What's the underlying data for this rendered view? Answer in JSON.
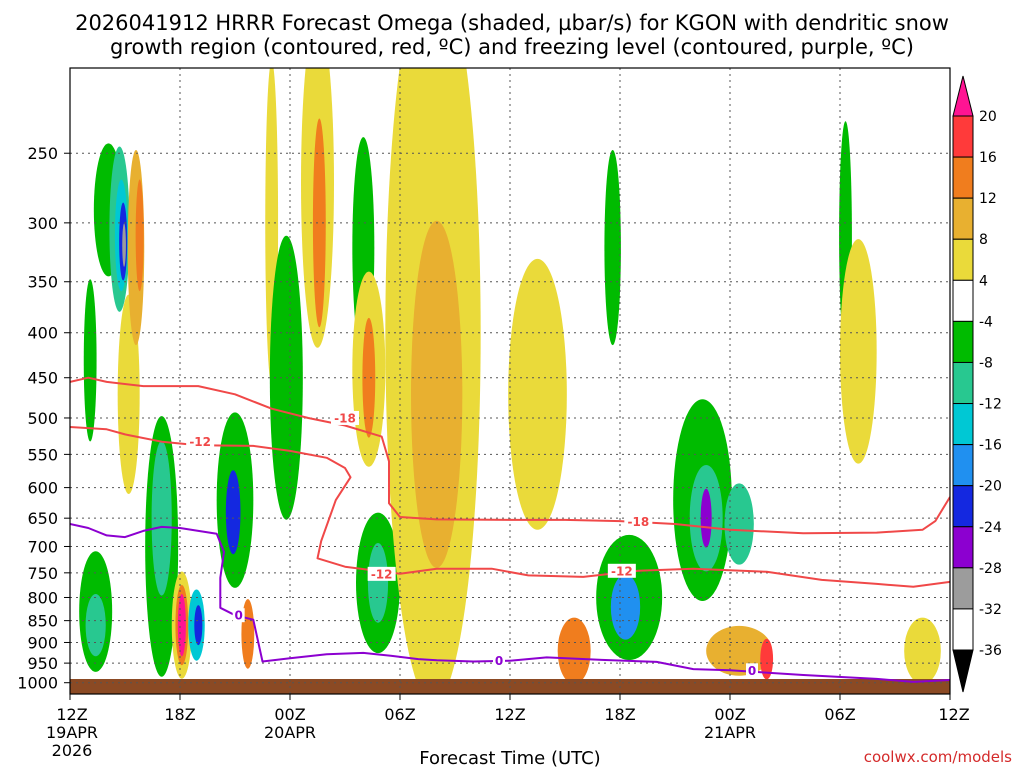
{
  "chart_data": {
    "type": "contour",
    "title_line1": "2026041912 HRRR Forecast Omega (shaded, µbar/s) for KGON with dendritic snow",
    "title_line2": "growth region (contoured, red, ºC) and freezing level (contoured, purple, ºC)",
    "xlabel": "Forecast Time (UTC)",
    "ylabel": "",
    "credit": "coolwx.com/models",
    "y_axis": {
      "scale": "log",
      "range": [
        200,
        1030
      ],
      "ticks": [
        250,
        300,
        350,
        400,
        450,
        500,
        550,
        600,
        650,
        700,
        750,
        800,
        850,
        900,
        950,
        1000
      ]
    },
    "x_axis": {
      "range_hours": [
        0,
        48
      ],
      "ticks": [
        {
          "hour": 0,
          "label": "12Z",
          "date": "19APR",
          "year": "2026"
        },
        {
          "hour": 6,
          "label": "18Z"
        },
        {
          "hour": 12,
          "label": "00Z",
          "date": "20APR"
        },
        {
          "hour": 18,
          "label": "06Z"
        },
        {
          "hour": 24,
          "label": "12Z"
        },
        {
          "hour": 30,
          "label": "18Z"
        },
        {
          "hour": 36,
          "label": "00Z",
          "date": "21APR"
        },
        {
          "hour": 42,
          "label": "06Z"
        },
        {
          "hour": 48,
          "label": "12Z"
        }
      ]
    },
    "colorbar": {
      "labels": [
        "20",
        "16",
        "12",
        "8",
        "4",
        "-4",
        "-8",
        "-12",
        "-16",
        "-20",
        "-24",
        "-28",
        "-32",
        "-36"
      ],
      "colors": [
        "#ff1493",
        "#ff3a3a",
        "#f07d1e",
        "#e8b030",
        "#eada3a",
        "#ffffff",
        "#00bb00",
        "#28c890",
        "#00c8d4",
        "#2090f0",
        "#1428e0",
        "#8c00d0",
        "#9c9c9c"
      ]
    },
    "series": [
      {
        "name": "-18",
        "color": "#f04848",
        "points": [
          [
            0,
            455
          ],
          [
            1,
            450
          ],
          [
            2,
            455
          ],
          [
            4,
            460
          ],
          [
            7,
            460
          ],
          [
            9,
            470
          ],
          [
            11,
            488
          ],
          [
            13,
            500
          ],
          [
            15,
            510
          ],
          [
            17,
            525
          ],
          [
            17.4,
            560
          ],
          [
            17.4,
            625
          ],
          [
            18,
            648
          ],
          [
            20,
            652
          ],
          [
            24,
            653
          ],
          [
            27,
            653
          ],
          [
            30,
            655
          ],
          [
            33,
            660
          ],
          [
            36,
            670
          ],
          [
            40,
            676
          ],
          [
            44,
            675
          ],
          [
            46.5,
            670
          ],
          [
            47.2,
            655
          ],
          [
            48,
            615
          ]
        ],
        "labels": [
          {
            "x": 15.0,
            "y": 500,
            "text": "-18"
          },
          {
            "x": 31.0,
            "y": 656,
            "text": "-18"
          }
        ]
      },
      {
        "name": "-12",
        "color": "#f04848",
        "points": [
          [
            0,
            512
          ],
          [
            2,
            515
          ],
          [
            3,
            522
          ],
          [
            5,
            532
          ],
          [
            7,
            537
          ],
          [
            10,
            538
          ],
          [
            12,
            545
          ],
          [
            14,
            555
          ],
          [
            15,
            570
          ],
          [
            15.3,
            584
          ],
          [
            14.5,
            620
          ],
          [
            13.7,
            690
          ],
          [
            13.5,
            722
          ],
          [
            15,
            738
          ],
          [
            18,
            752
          ],
          [
            20,
            742
          ],
          [
            23,
            742
          ],
          [
            25,
            755
          ],
          [
            28,
            758
          ],
          [
            31,
            746
          ],
          [
            34,
            742
          ],
          [
            38,
            748
          ],
          [
            41,
            764
          ],
          [
            44,
            772
          ],
          [
            46,
            778
          ],
          [
            48,
            768
          ]
        ],
        "labels": [
          {
            "x": 7.1,
            "y": 532,
            "text": "-12"
          },
          {
            "x": 17.0,
            "y": 752,
            "text": "-12"
          },
          {
            "x": 30.1,
            "y": 746,
            "text": "-12"
          }
        ]
      },
      {
        "name": "0",
        "color": "#8c00d0",
        "points": [
          [
            0,
            660
          ],
          [
            1,
            667
          ],
          [
            2,
            680
          ],
          [
            3,
            683
          ],
          [
            4,
            672
          ],
          [
            5,
            665
          ],
          [
            6,
            667
          ],
          [
            8,
            677
          ],
          [
            8.4,
            710
          ],
          [
            8.2,
            760
          ],
          [
            8.2,
            822
          ],
          [
            9,
            838
          ],
          [
            10,
            848
          ],
          [
            10.2,
            886
          ],
          [
            10.5,
            946
          ],
          [
            12,
            938
          ],
          [
            14,
            928
          ],
          [
            16,
            925
          ],
          [
            17.5,
            932
          ],
          [
            19,
            940
          ],
          [
            20,
            943
          ],
          [
            22,
            946
          ],
          [
            24,
            944
          ],
          [
            26,
            936
          ],
          [
            29,
            942
          ],
          [
            32,
            947
          ],
          [
            34,
            965
          ],
          [
            36,
            968
          ],
          [
            40,
            980
          ],
          [
            44,
            990
          ],
          [
            46,
            998
          ],
          [
            48,
            993
          ]
        ],
        "labels": [
          {
            "x": 9.2,
            "y": 838,
            "text": "0"
          },
          {
            "x": 23.4,
            "y": 944,
            "text": "0"
          },
          {
            "x": 37.2,
            "y": 968,
            "text": "0"
          }
        ]
      }
    ],
    "shading": [
      {
        "t": 1.1,
        "p": 430,
        "rx": 0.35,
        "ry": 90,
        "c": "#00bb00"
      },
      {
        "t": 1.4,
        "p": 830,
        "rx": 0.9,
        "ry": 130,
        "c": "#00bb00"
      },
      {
        "t": 1.4,
        "p": 860,
        "rx": 0.55,
        "ry": 70,
        "c": "#28c890"
      },
      {
        "t": 2.1,
        "p": 290,
        "rx": 0.8,
        "ry": 50,
        "c": "#00bb00"
      },
      {
        "t": 2.7,
        "p": 305,
        "rx": 0.55,
        "ry": 65,
        "c": "#28c890"
      },
      {
        "t": 2.8,
        "p": 310,
        "rx": 0.35,
        "ry": 45,
        "c": "#00c8d4"
      },
      {
        "t": 2.9,
        "p": 315,
        "rx": 0.22,
        "ry": 32,
        "c": "#1428e0"
      },
      {
        "t": 2.95,
        "p": 318,
        "rx": 0.1,
        "ry": 18,
        "c": "#9c9c9c"
      },
      {
        "t": 3.2,
        "p": 470,
        "rx": 0.6,
        "ry": 120,
        "c": "#eada3a"
      },
      {
        "t": 3.6,
        "p": 320,
        "rx": 0.45,
        "ry": 80,
        "c": "#e8b030"
      },
      {
        "t": 3.8,
        "p": 310,
        "rx": 0.22,
        "ry": 45,
        "c": "#f07d1e"
      },
      {
        "t": 5.0,
        "p": 700,
        "rx": 0.9,
        "ry": 230,
        "c": "#00bb00"
      },
      {
        "t": 5.0,
        "p": 650,
        "rx": 0.55,
        "ry": 130,
        "c": "#28c890"
      },
      {
        "t": 6.1,
        "p": 860,
        "rx": 0.55,
        "ry": 120,
        "c": "#eada3a"
      },
      {
        "t": 6.1,
        "p": 860,
        "rx": 0.35,
        "ry": 90,
        "c": "#f07d1e"
      },
      {
        "t": 6.1,
        "p": 860,
        "rx": 0.22,
        "ry": 70,
        "c": "#ff1493"
      },
      {
        "t": 6.9,
        "p": 860,
        "rx": 0.45,
        "ry": 80,
        "c": "#00c8d4"
      },
      {
        "t": 7.0,
        "p": 860,
        "rx": 0.22,
        "ry": 45,
        "c": "#1428e0"
      },
      {
        "t": 9.0,
        "p": 620,
        "rx": 1.0,
        "ry": 140,
        "c": "#00bb00"
      },
      {
        "t": 8.9,
        "p": 640,
        "rx": 0.4,
        "ry": 70,
        "c": "#1428e0"
      },
      {
        "t": 9.7,
        "p": 880,
        "rx": 0.35,
        "ry": 80,
        "c": "#f07d1e"
      },
      {
        "t": 11.0,
        "p": 300,
        "rx": 0.35,
        "ry": 120,
        "c": "#eada3a"
      },
      {
        "t": 11.8,
        "p": 450,
        "rx": 0.9,
        "ry": 160,
        "c": "#00bb00"
      },
      {
        "t": 13.5,
        "p": 270,
        "rx": 0.9,
        "ry": 110,
        "c": "#eada3a"
      },
      {
        "t": 13.6,
        "p": 300,
        "rx": 0.35,
        "ry": 80,
        "c": "#f07d1e"
      },
      {
        "t": 16.0,
        "p": 320,
        "rx": 0.6,
        "ry": 90,
        "c": "#00bb00"
      },
      {
        "t": 16.3,
        "p": 440,
        "rx": 0.9,
        "ry": 110,
        "c": "#eada3a"
      },
      {
        "t": 16.3,
        "p": 450,
        "rx": 0.35,
        "ry": 70,
        "c": "#f07d1e"
      },
      {
        "t": 16.8,
        "p": 770,
        "rx": 1.2,
        "ry": 140,
        "c": "#00bb00"
      },
      {
        "t": 16.8,
        "p": 770,
        "rx": 0.55,
        "ry": 80,
        "c": "#28c890"
      },
      {
        "t": 19.8,
        "p": 400,
        "rx": 2.6,
        "ry": 300,
        "c": "#eada3a"
      },
      {
        "t": 20.0,
        "p": 470,
        "rx": 1.4,
        "ry": 200,
        "c": "#e8b030"
      },
      {
        "t": 25.5,
        "p": 470,
        "rx": 1.6,
        "ry": 160,
        "c": "#eada3a"
      },
      {
        "t": 27.5,
        "p": 920,
        "rx": 0.9,
        "ry": 80,
        "c": "#f07d1e"
      },
      {
        "t": 29.6,
        "p": 320,
        "rx": 0.45,
        "ry": 80,
        "c": "#00bb00"
      },
      {
        "t": 30.5,
        "p": 800,
        "rx": 1.8,
        "ry": 130,
        "c": "#00bb00"
      },
      {
        "t": 30.3,
        "p": 820,
        "rx": 0.8,
        "ry": 70,
        "c": "#2090f0"
      },
      {
        "t": 34.5,
        "p": 620,
        "rx": 1.6,
        "ry": 160,
        "c": "#00bb00"
      },
      {
        "t": 34.7,
        "p": 650,
        "rx": 0.9,
        "ry": 90,
        "c": "#28c890"
      },
      {
        "t": 34.7,
        "p": 650,
        "rx": 0.3,
        "ry": 50,
        "c": "#8c00d0"
      },
      {
        "t": 36.5,
        "p": 660,
        "rx": 0.8,
        "ry": 70,
        "c": "#28c890"
      },
      {
        "t": 36.5,
        "p": 920,
        "rx": 1.8,
        "ry": 60,
        "c": "#e8b030"
      },
      {
        "t": 38.0,
        "p": 940,
        "rx": 0.35,
        "ry": 50,
        "c": "#ff3a3a"
      },
      {
        "t": 42.3,
        "p": 310,
        "rx": 0.35,
        "ry": 90,
        "c": "#00bb00"
      },
      {
        "t": 43.0,
        "p": 420,
        "rx": 1.0,
        "ry": 120,
        "c": "#eada3a"
      },
      {
        "t": 46.5,
        "p": 920,
        "rx": 1.0,
        "ry": 80,
        "c": "#eada3a"
      }
    ]
  }
}
